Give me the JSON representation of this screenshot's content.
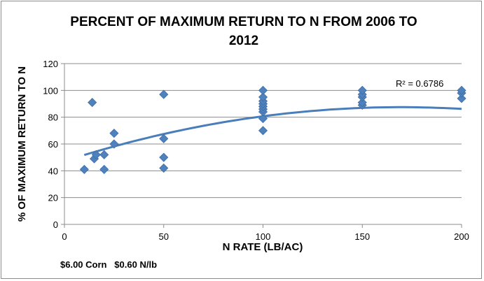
{
  "chart_data": {
    "type": "scatter",
    "title_line1": "PERCENT OF MAXIMUM RETURN TO N FROM 2006 TO",
    "title_line2": "2012",
    "xlabel": "N RATE (LB/AC)",
    "ylabel": "% OF MAXIMUM RETURN TO N",
    "xlim": [
      0,
      200
    ],
    "ylim": [
      0,
      120
    ],
    "x_ticks": [
      0,
      50,
      100,
      150,
      200
    ],
    "y_ticks": [
      0,
      20,
      40,
      60,
      80,
      100,
      120
    ],
    "grid": "horizontal",
    "marker_color": "#4f81bd",
    "trendline_color": "#4a7ebb",
    "r_squared_label": "R² = 0.6786",
    "points": [
      {
        "x": 10,
        "y": 41
      },
      {
        "x": 14,
        "y": 91
      },
      {
        "x": 15,
        "y": 49
      },
      {
        "x": 16,
        "y": 52
      },
      {
        "x": 20,
        "y": 41
      },
      {
        "x": 20,
        "y": 52
      },
      {
        "x": 25,
        "y": 60
      },
      {
        "x": 25,
        "y": 68
      },
      {
        "x": 50,
        "y": 42
      },
      {
        "x": 50,
        "y": 50
      },
      {
        "x": 50,
        "y": 64
      },
      {
        "x": 50,
        "y": 97
      },
      {
        "x": 100,
        "y": 70
      },
      {
        "x": 100,
        "y": 79
      },
      {
        "x": 100,
        "y": 84
      },
      {
        "x": 100,
        "y": 86
      },
      {
        "x": 100,
        "y": 88
      },
      {
        "x": 100,
        "y": 90
      },
      {
        "x": 100,
        "y": 92
      },
      {
        "x": 100,
        "y": 95
      },
      {
        "x": 100,
        "y": 100
      },
      {
        "x": 150,
        "y": 89
      },
      {
        "x": 150,
        "y": 91
      },
      {
        "x": 150,
        "y": 95
      },
      {
        "x": 150,
        "y": 97
      },
      {
        "x": 150,
        "y": 100
      },
      {
        "x": 200,
        "y": 94
      },
      {
        "x": 200,
        "y": 98
      },
      {
        "x": 200,
        "y": 100
      }
    ],
    "trendline": {
      "type": "polynomial",
      "x_range": [
        10,
        200
      ],
      "coefficients_quadratic": [
        -0.0014,
        0.475,
        47.2
      ]
    }
  },
  "footer": {
    "price_note": "$6.00 Corn   $0.60 N/lb"
  }
}
